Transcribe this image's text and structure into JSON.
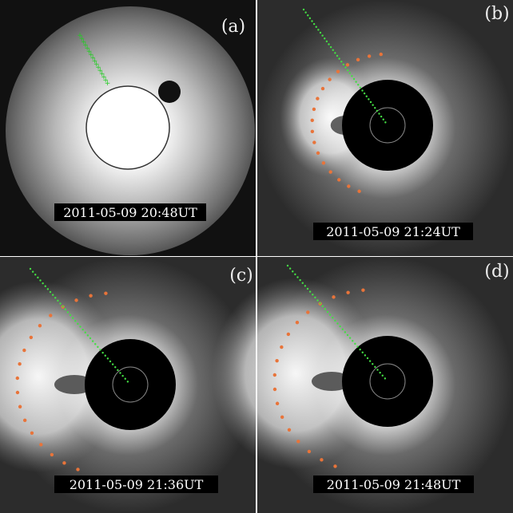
{
  "panels": [
    {
      "label": "(a)",
      "timestamp": "2011-05-09 20:48UT"
    },
    {
      "label": "(b)",
      "timestamp": "2011-05-09 21:24UT"
    },
    {
      "label": "(c)",
      "timestamp": "2011-05-09 21:36UT"
    },
    {
      "label": "(d)",
      "timestamp": "2011-05-09 21:48UT"
    }
  ]
}
